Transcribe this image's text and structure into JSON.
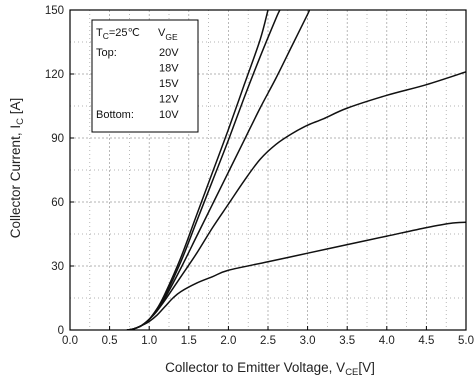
{
  "chart_data": {
    "type": "line",
    "title": "",
    "xlabel": {
      "main": "Collector to Emitter Voltage, V",
      "sub": "CE",
      "unit": "[V]"
    },
    "ylabel": {
      "main": "Collector Current, I",
      "sub": "C",
      "unit": " [A]"
    },
    "xlim": [
      0,
      5
    ],
    "ylim": [
      0,
      150
    ],
    "xticks": [
      "0.0",
      "0.5",
      "1.0",
      "1.5",
      "2.0",
      "2.5",
      "3.0",
      "3.5",
      "4.0",
      "4.5",
      "5.0"
    ],
    "yticks": [
      "0",
      "30",
      "60",
      "90",
      "120",
      "150"
    ],
    "grid": "dotted",
    "legend": {
      "position": "top-left",
      "header_left_main": "T",
      "header_left_sub": "C",
      "header_left_rest": "=25℃",
      "header_right_main": "V",
      "header_right_sub": "GE",
      "rows": [
        {
          "label": "Top:",
          "value": "20V"
        },
        {
          "label": "",
          "value": "18V"
        },
        {
          "label": "",
          "value": "15V"
        },
        {
          "label": "",
          "value": "12V"
        },
        {
          "label": "Bottom:",
          "value": "10V"
        }
      ]
    },
    "series": [
      {
        "name": "20V",
        "x": [
          0.72,
          0.8,
          0.9,
          1.0,
          1.1,
          1.2,
          1.4,
          1.6,
          1.8,
          2.0,
          2.2,
          2.4,
          2.5
        ],
        "y": [
          0,
          0.5,
          2,
          5,
          10,
          17,
          34,
          54,
          74,
          94,
          115,
          136,
          150
        ]
      },
      {
        "name": "18V",
        "x": [
          0.72,
          0.8,
          0.9,
          1.0,
          1.1,
          1.2,
          1.4,
          1.6,
          1.8,
          2.0,
          2.2,
          2.4,
          2.6,
          2.65
        ],
        "y": [
          0,
          0.5,
          2,
          5,
          10,
          16,
          32,
          51,
          70,
          89,
          109,
          128,
          146,
          150
        ]
      },
      {
        "name": "15V",
        "x": [
          0.72,
          0.8,
          0.9,
          1.0,
          1.1,
          1.2,
          1.4,
          1.6,
          1.8,
          2.0,
          2.2,
          2.4,
          2.6,
          2.8,
          3.0,
          3.02
        ],
        "y": [
          0,
          0.5,
          2,
          5,
          9,
          15,
          29,
          44,
          59,
          74,
          89,
          104,
          118,
          133,
          148,
          150
        ]
      },
      {
        "name": "12V",
        "x": [
          0.72,
          0.8,
          0.9,
          1.0,
          1.1,
          1.2,
          1.4,
          1.6,
          1.8,
          2.0,
          2.2,
          2.4,
          2.6,
          2.8,
          3.0,
          3.2,
          3.5,
          4.0,
          4.5,
          5.0
        ],
        "y": [
          0,
          0.5,
          2,
          5,
          9,
          14,
          25,
          36,
          48,
          59,
          70,
          80,
          87,
          92,
          96,
          99,
          104,
          110,
          115,
          121
        ]
      },
      {
        "name": "10V",
        "x": [
          0.72,
          0.8,
          0.9,
          1.0,
          1.1,
          1.2,
          1.3,
          1.4,
          1.6,
          1.8,
          2.0,
          2.5,
          3.0,
          3.5,
          4.0,
          4.5,
          4.8,
          5.0
        ],
        "y": [
          0,
          0.5,
          2,
          4,
          7,
          11,
          15,
          18,
          22,
          25,
          28,
          32,
          36,
          40,
          44,
          48,
          50,
          50.5
        ]
      }
    ]
  }
}
